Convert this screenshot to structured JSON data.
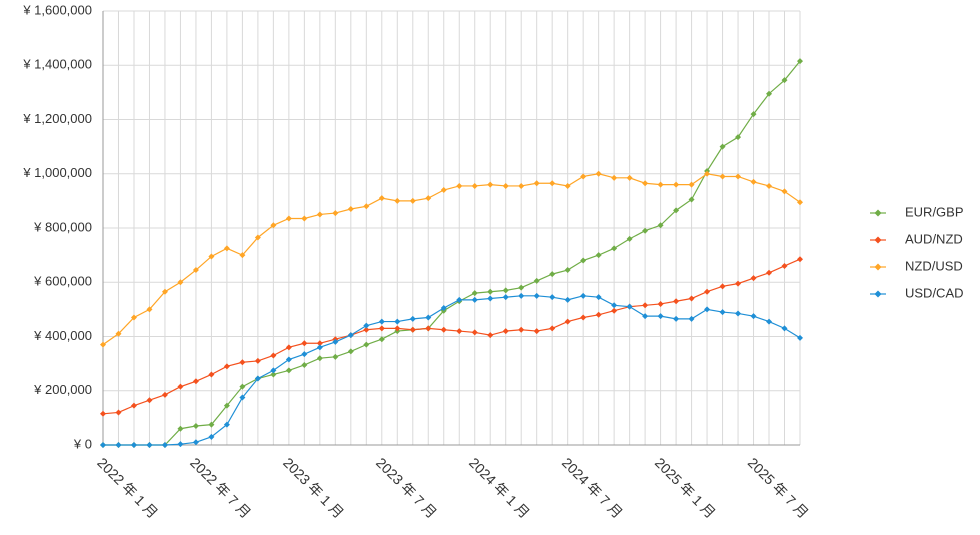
{
  "chart_data": {
    "type": "line",
    "categories": [
      "2022 年 1 月",
      null,
      null,
      null,
      null,
      null,
      "2022 年 7 月",
      null,
      null,
      null,
      null,
      null,
      "2023 年 1 月",
      null,
      null,
      null,
      null,
      null,
      "2023 年 7 月",
      null,
      null,
      null,
      null,
      null,
      "2024 年 1 月",
      null,
      null,
      null,
      null,
      null,
      "2024 年 7 月",
      null,
      null,
      null,
      null,
      null,
      "2025 年 1 月",
      null,
      null,
      null,
      null,
      null,
      "2025 年 7 月",
      null,
      null,
      null
    ],
    "series": [
      {
        "name": "EUR/GBP",
        "color": "#70ad47",
        "values": [
          0,
          0,
          0,
          0,
          0,
          60000,
          70000,
          75000,
          145000,
          215000,
          245000,
          260000,
          275000,
          295000,
          320000,
          325000,
          345000,
          370000,
          390000,
          420000,
          425000,
          430000,
          495000,
          530000,
          560000,
          565000,
          570000,
          580000,
          605000,
          630000,
          645000,
          680000,
          700000,
          725000,
          760000,
          790000,
          810000,
          865000,
          905000,
          1010000,
          1100000,
          1135000,
          1220000,
          1295000,
          1345000,
          1415000
        ]
      },
      {
        "name": "AUD/NZD",
        "color": "#f4511e",
        "values": [
          115000,
          120000,
          145000,
          165000,
          185000,
          215000,
          235000,
          260000,
          290000,
          305000,
          310000,
          330000,
          360000,
          375000,
          375000,
          390000,
          405000,
          425000,
          430000,
          430000,
          425000,
          430000,
          425000,
          420000,
          415000,
          405000,
          420000,
          425000,
          420000,
          430000,
          455000,
          470000,
          480000,
          495000,
          510000,
          515000,
          520000,
          530000,
          540000,
          565000,
          585000,
          595000,
          615000,
          635000,
          660000,
          685000
        ]
      },
      {
        "name": "NZD/USD",
        "color": "#ffa526",
        "values": [
          370000,
          410000,
          470000,
          500000,
          565000,
          600000,
          645000,
          695000,
          725000,
          700000,
          765000,
          810000,
          835000,
          835000,
          850000,
          855000,
          870000,
          880000,
          910000,
          900000,
          900000,
          910000,
          940000,
          955000,
          955000,
          960000,
          955000,
          955000,
          965000,
          965000,
          955000,
          990000,
          1000000,
          985000,
          985000,
          965000,
          960000,
          960000,
          960000,
          1000000,
          990000,
          990000,
          970000,
          955000,
          935000,
          895000
        ]
      },
      {
        "name": "USD/CAD",
        "color": "#1f8fd6",
        "values": [
          0,
          0,
          0,
          0,
          0,
          3000,
          10000,
          30000,
          75000,
          175000,
          245000,
          275000,
          315000,
          335000,
          360000,
          380000,
          405000,
          440000,
          455000,
          455000,
          465000,
          470000,
          505000,
          535000,
          535000,
          540000,
          545000,
          550000,
          550000,
          545000,
          535000,
          550000,
          545000,
          515000,
          510000,
          475000,
          475000,
          465000,
          465000,
          500000,
          490000,
          485000,
          475000,
          455000,
          430000,
          395000
        ]
      }
    ],
    "ylim": [
      0,
      1600000
    ],
    "yticks": [
      {
        "value": 0,
        "label": "¥ 0"
      },
      {
        "value": 200000,
        "label": "¥ 200,000"
      },
      {
        "value": 400000,
        "label": "¥ 400,000"
      },
      {
        "value": 600000,
        "label": "¥ 600,000"
      },
      {
        "value": 800000,
        "label": "¥ 800,000"
      },
      {
        "value": 1000000,
        "label": "¥ 1,000,000"
      },
      {
        "value": 1200000,
        "label": "¥ 1,200,000"
      },
      {
        "value": 1400000,
        "label": "¥ 1,400,000"
      },
      {
        "value": 1600000,
        "label": "¥ 1,600,000"
      }
    ],
    "grid": true,
    "legend": "right"
  }
}
